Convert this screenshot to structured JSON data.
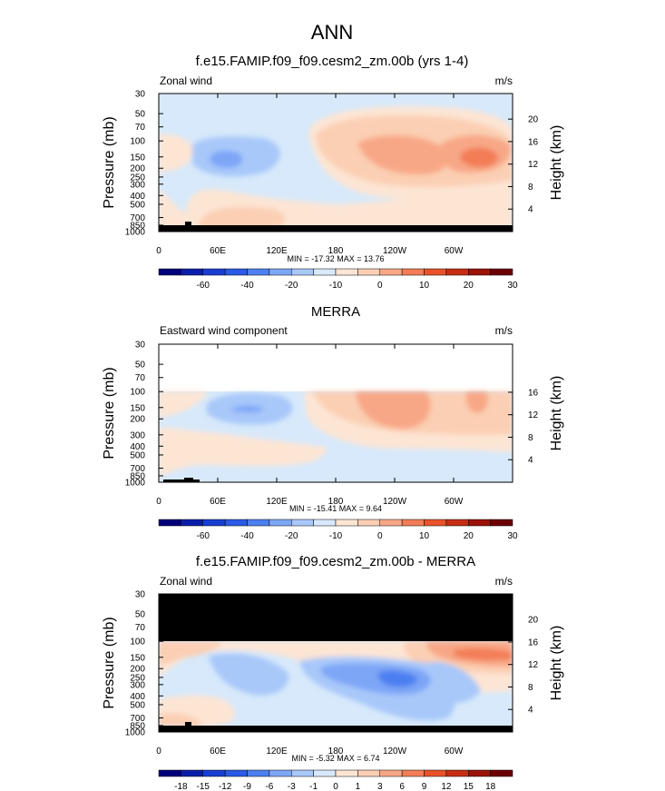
{
  "title": "ANN",
  "colors": {
    "background": "#ffffff",
    "bedrock": "#000000",
    "neg4": "#2a55d4",
    "neg3": "#4c7ff0",
    "neg2": "#7ea6f7",
    "neg1": "#a8c8fa",
    "neg0": "#d7e9fb",
    "pos0": "#fde5d4",
    "pos1": "#fbcfb3",
    "pos2": "#f8a786",
    "pos3": "#f37d56",
    "pos4": "#e8532c"
  },
  "chart_data": [
    {
      "type": "heatmap",
      "title": "f.e15.FAMIP.f09_f09.cesm2_zm.00b (yrs 1-4)",
      "left_label": "Zonal wind",
      "units": "m/s",
      "ylabel": "Pressure (mb)",
      "ylabel_right": "Height (km)",
      "x_ticks": [
        "0",
        "60E",
        "120E",
        "180",
        "120W",
        "60W"
      ],
      "y_ticks": [
        "30",
        "50",
        "70",
        "100",
        "150",
        "200",
        "250",
        "300",
        "400",
        "500",
        "700",
        "850",
        "1000"
      ],
      "height_ticks": [
        "20",
        "16",
        "12",
        "8",
        "4"
      ],
      "stats": "MIN = -17.32  MAX = 13.76",
      "colorbar_labels": [
        "-60",
        "-40",
        "-20",
        "-10",
        "0",
        "10",
        "20",
        "30"
      ],
      "ylim_mb": [
        1000,
        30
      ]
    },
    {
      "type": "heatmap",
      "title": "MERRA",
      "left_label": "Eastward wind component",
      "units": "m/s",
      "ylabel": "Pressure (mb)",
      "ylabel_right": "Height (km)",
      "x_ticks": [
        "0",
        "60E",
        "120E",
        "180",
        "120W",
        "60W"
      ],
      "y_ticks": [
        "30",
        "50",
        "70",
        "100",
        "150",
        "200",
        "300",
        "400",
        "500",
        "700",
        "850",
        "1000"
      ],
      "height_ticks": [
        "16",
        "12",
        "8",
        "4"
      ],
      "stats": "MIN = -15.41  MAX =  9.64",
      "colorbar_labels": [
        "-60",
        "-40",
        "-20",
        "-10",
        "0",
        "10",
        "20",
        "30"
      ],
      "ylim_mb": [
        1000,
        30
      ]
    },
    {
      "type": "heatmap",
      "title": "f.e15.FAMIP.f09_f09.cesm2_zm.00b - MERRA",
      "left_label": "Zonal wind",
      "units": "m/s",
      "ylabel": "Pressure (mb)",
      "ylabel_right": "Height (km)",
      "x_ticks": [
        "0",
        "60E",
        "120E",
        "180",
        "120W",
        "60W"
      ],
      "y_ticks": [
        "30",
        "50",
        "70",
        "100",
        "150",
        "200",
        "250",
        "300",
        "400",
        "500",
        "700",
        "850",
        "1000"
      ],
      "height_ticks": [
        "20",
        "16",
        "12",
        "8",
        "4"
      ],
      "stats": "MIN = -5.32  MAX =  6.74",
      "colorbar_labels": [
        "-18",
        "-15",
        "-12",
        "-9",
        "-6",
        "-3",
        "-1",
        "0",
        "1",
        "3",
        "6",
        "9",
        "12",
        "15",
        "18"
      ],
      "ylim_mb": [
        1000,
        30
      ]
    }
  ]
}
